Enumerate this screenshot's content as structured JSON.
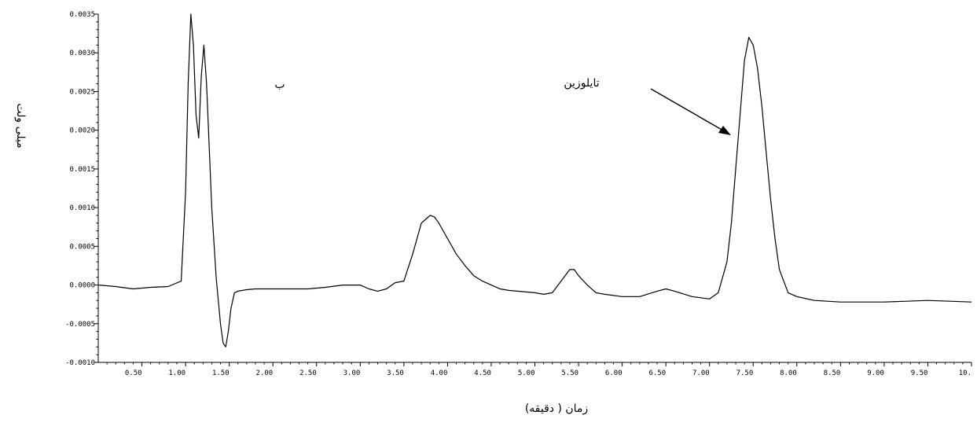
{
  "chart_data": {
    "type": "line",
    "xlabel": "زمان ( دقیقه)",
    "ylabel": "میلی ولت",
    "panel_label": "ب",
    "xlim": [
      0.0,
      10.0
    ],
    "ylim": [
      -0.001,
      0.0035
    ],
    "x_ticks": [
      "0.50",
      "1.00",
      "1.50",
      "2.00",
      "2.50",
      "3.00",
      "3.50",
      "4.00",
      "4.50",
      "5.00",
      "5.50",
      "6.00",
      "6.50",
      "7.00",
      "7.50",
      "8.00",
      "8.50",
      "9.00",
      "9.50",
      "10."
    ],
    "y_ticks": [
      "0.0035",
      "0.0030",
      "0.0025",
      "0.0020",
      "0.0015",
      "0.0010",
      "0.0005",
      "0.0000",
      "-0.0005",
      "-0.0010"
    ],
    "annotations": [
      {
        "text": "تایلوزین",
        "x": 7.3,
        "y": 0.0022,
        "arrow_to": [
          7.35,
          0.0021
        ]
      }
    ],
    "series": [
      {
        "color": "#000000",
        "x": [
          0.0,
          0.2,
          0.4,
          0.6,
          0.8,
          0.95,
          1.0,
          1.03,
          1.06,
          1.09,
          1.12,
          1.15,
          1.18,
          1.21,
          1.24,
          1.27,
          1.3,
          1.35,
          1.4,
          1.43,
          1.46,
          1.49,
          1.52,
          1.56,
          1.6,
          1.7,
          1.8,
          2.0,
          2.2,
          2.4,
          2.6,
          2.8,
          3.0,
          3.1,
          3.2,
          3.3,
          3.4,
          3.5,
          3.6,
          3.7,
          3.8,
          3.85,
          3.9,
          4.0,
          4.1,
          4.2,
          4.3,
          4.4,
          4.5,
          4.6,
          4.7,
          4.8,
          5.0,
          5.1,
          5.2,
          5.3,
          5.4,
          5.45,
          5.5,
          5.6,
          5.7,
          5.8,
          6.0,
          6.2,
          6.4,
          6.5,
          6.6,
          6.8,
          7.0,
          7.1,
          7.2,
          7.25,
          7.3,
          7.35,
          7.4,
          7.45,
          7.5,
          7.55,
          7.6,
          7.65,
          7.7,
          7.75,
          7.8,
          7.9,
          8.0,
          8.2,
          8.5,
          9.0,
          9.5,
          10.0
        ],
        "y": [
          0.0,
          -2e-05,
          -5e-05,
          -3e-05,
          -2e-05,
          5e-05,
          0.0012,
          0.0026,
          0.0035,
          0.0031,
          0.0022,
          0.0019,
          0.0027,
          0.0031,
          0.0026,
          0.0018,
          0.001,
          0.0001,
          -0.0005,
          -0.00075,
          -0.0008,
          -0.0006,
          -0.0003,
          -0.0001,
          -8e-05,
          -6e-05,
          -5e-05,
          -5e-05,
          -5e-05,
          -5e-05,
          -3e-05,
          0.0,
          0.0,
          -5e-05,
          -8e-05,
          -5e-05,
          3e-05,
          5e-05,
          0.0004,
          0.0008,
          0.0009,
          0.00088,
          0.0008,
          0.0006,
          0.0004,
          0.00025,
          0.00012,
          5e-05,
          0.0,
          -5e-05,
          -7e-05,
          -8e-05,
          -0.0001,
          -0.00012,
          -0.0001,
          5e-05,
          0.0002,
          0.0002,
          0.00012,
          0.0,
          -0.0001,
          -0.00012,
          -0.00015,
          -0.00015,
          -8e-05,
          -5e-05,
          -8e-05,
          -0.00015,
          -0.00018,
          -0.0001,
          0.0003,
          0.0008,
          0.0015,
          0.0022,
          0.0029,
          0.0032,
          0.0031,
          0.0028,
          0.0023,
          0.0017,
          0.0011,
          0.0006,
          0.0002,
          -0.0001,
          -0.00015,
          -0.0002,
          -0.00022,
          -0.00022,
          -0.0002,
          -0.00022
        ]
      }
    ]
  }
}
